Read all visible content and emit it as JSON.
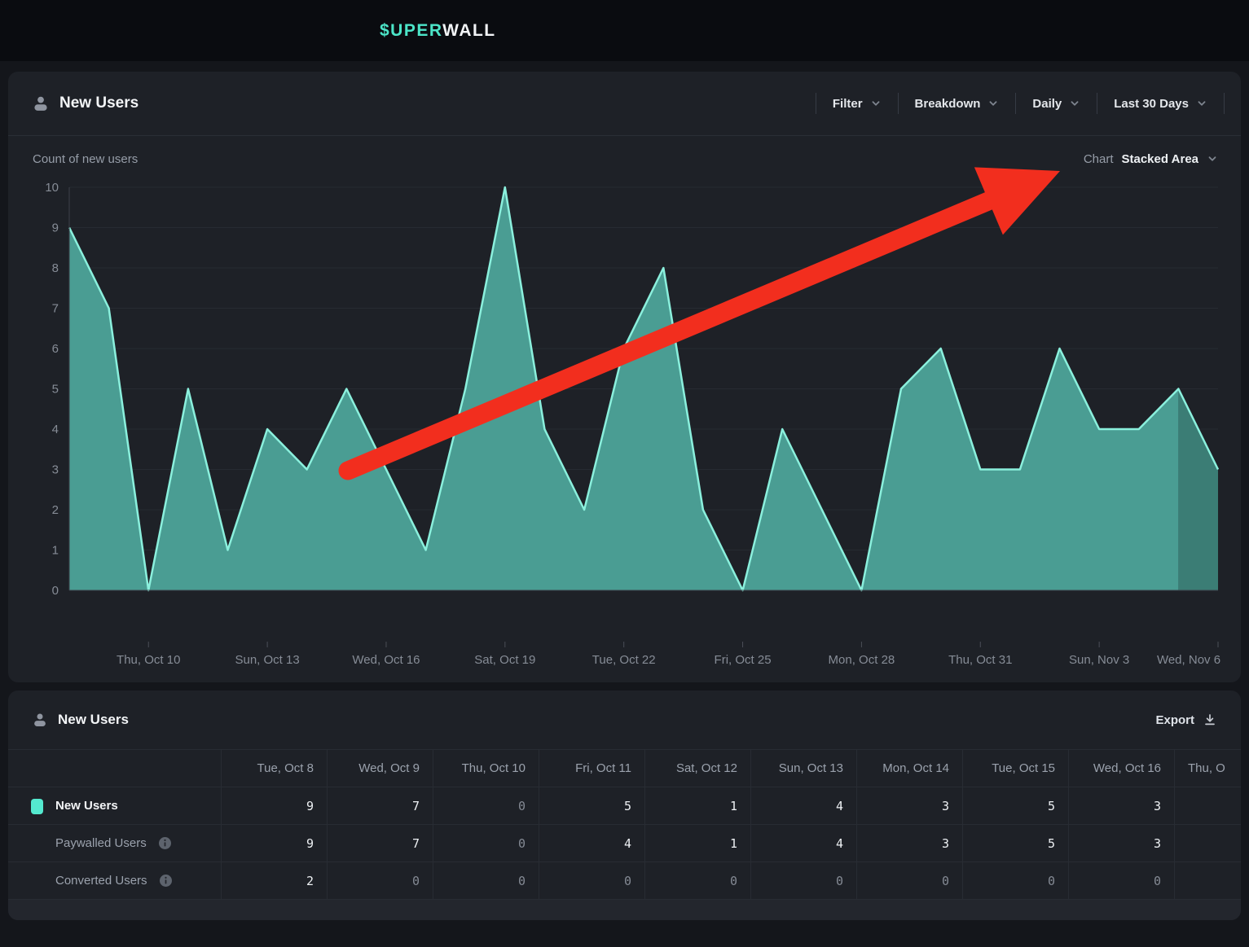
{
  "topbar": {
    "logo_prefix": "$UPER",
    "logo_suffix": "WALL"
  },
  "chart_panel": {
    "title": "New Users",
    "subtitle": "Count of new users",
    "chart_type_label": "Chart",
    "chart_type_value": "Stacked Area",
    "controls": [
      {
        "label": "Filter"
      },
      {
        "label": "Breakdown"
      },
      {
        "label": "Daily"
      },
      {
        "label": "Last 30 Days"
      }
    ]
  },
  "chart_data": {
    "type": "area",
    "title": "Count of new users",
    "series_name": "New Users",
    "x": [
      "Tue, Oct 8",
      "Wed, Oct 9",
      "Thu, Oct 10",
      "Fri, Oct 11",
      "Sat, Oct 12",
      "Sun, Oct 13",
      "Mon, Oct 14",
      "Tue, Oct 15",
      "Wed, Oct 16",
      "Thu, Oct 17",
      "Fri, Oct 18",
      "Sat, Oct 19",
      "Sun, Oct 20",
      "Mon, Oct 21",
      "Tue, Oct 22",
      "Wed, Oct 23",
      "Thu, Oct 24",
      "Fri, Oct 25",
      "Sat, Oct 26",
      "Sun, Oct 27",
      "Mon, Oct 28",
      "Tue, Oct 29",
      "Wed, Oct 30",
      "Thu, Oct 31",
      "Fri, Nov 1",
      "Sat, Nov 2",
      "Sun, Nov 3",
      "Mon, Nov 4",
      "Tue, Nov 5",
      "Wed, Nov 6"
    ],
    "values": [
      9,
      7,
      0,
      5,
      1,
      4,
      3,
      5,
      3,
      1,
      5,
      10,
      4,
      2,
      6,
      8,
      2,
      0,
      4,
      2,
      0,
      5,
      6,
      3,
      3,
      6,
      4,
      4,
      5,
      3
    ],
    "x_tick_labels": [
      "Thu, Oct 10",
      "Sun, Oct 13",
      "Wed, Oct 16",
      "Sat, Oct 19",
      "Tue, Oct 22",
      "Fri, Oct 25",
      "Mon, Oct 28",
      "Thu, Oct 31",
      "Sun, Nov 3",
      "Wed, Nov 6"
    ],
    "y_ticks": [
      0,
      1,
      2,
      3,
      4,
      5,
      6,
      7,
      8,
      9,
      10
    ],
    "ylim": [
      0,
      10
    ],
    "grid": true,
    "legend_position": "none",
    "colors": {
      "fill": "#4A9D93",
      "fill_last_day": "#3B7D75",
      "stroke": "#8BF0DD"
    },
    "annotation": {
      "type": "arrow",
      "color": "#F22E1E"
    }
  },
  "table_panel": {
    "title": "New Users",
    "export_label": "Export",
    "columns": [
      "Tue, Oct 8",
      "Wed, Oct 9",
      "Thu, Oct 10",
      "Fri, Oct 11",
      "Sat, Oct 12",
      "Sun, Oct 13",
      "Mon, Oct 14",
      "Tue, Oct 15",
      "Wed, Oct 16",
      "Thu, O"
    ],
    "rows": [
      {
        "label": "New Users",
        "has_swatch": true,
        "has_info": false,
        "values": [
          "9",
          "7",
          "0",
          "5",
          "1",
          "4",
          "3",
          "5",
          "3",
          ""
        ]
      },
      {
        "label": "Paywalled Users",
        "has_swatch": false,
        "has_info": true,
        "values": [
          "9",
          "7",
          "0",
          "4",
          "1",
          "4",
          "3",
          "5",
          "3",
          ""
        ]
      },
      {
        "label": "Converted Users",
        "has_swatch": false,
        "has_info": true,
        "values": [
          "2",
          "0",
          "0",
          "0",
          "0",
          "0",
          "0",
          "0",
          "0",
          ""
        ]
      }
    ]
  },
  "colors": {
    "accent_teal": "#4CE5C8",
    "panel_bg": "#1E2127",
    "page_bg": "#14161B",
    "topbar_bg": "#0A0C10",
    "annotation_red": "#F22E1E"
  }
}
